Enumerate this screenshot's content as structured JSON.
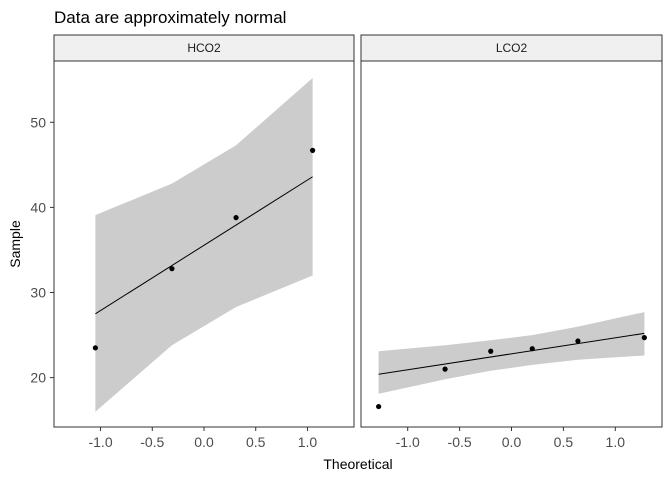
{
  "chart_data": {
    "type": "scatter",
    "title": "Data are approximately normal",
    "xlabel": "Theoretical",
    "ylabel": "Sample",
    "xlim": [
      -1.45,
      1.45
    ],
    "ylim": [
      14.2,
      57.2
    ],
    "x_ticks": [
      "-1.0",
      "-0.5",
      "0.0",
      "0.5",
      "1.0"
    ],
    "x_tick_values": [
      -1.0,
      -0.5,
      0.0,
      0.5,
      1.0
    ],
    "y_ticks": [
      "20",
      "30",
      "40",
      "50"
    ],
    "y_tick_values": [
      20,
      30,
      40,
      50
    ],
    "grid": false,
    "band_color": "#cccccc",
    "panels": [
      {
        "name": "HCO2",
        "points": [
          {
            "x": -1.05,
            "y": 23.5
          },
          {
            "x": -0.31,
            "y": 32.8
          },
          {
            "x": 0.31,
            "y": 38.8
          },
          {
            "x": 1.05,
            "y": 46.7
          }
        ],
        "line": [
          {
            "x": -1.05,
            "y": 27.5
          },
          {
            "x": 1.05,
            "y": 43.6
          }
        ],
        "band": [
          {
            "x": -1.05,
            "lower": 16.0,
            "upper": 39.1
          },
          {
            "x": -0.31,
            "lower": 23.8,
            "upper": 42.8
          },
          {
            "x": 0.31,
            "lower": 28.3,
            "upper": 47.3
          },
          {
            "x": 1.05,
            "lower": 32.0,
            "upper": 55.2
          }
        ]
      },
      {
        "name": "LCO2",
        "points": [
          {
            "x": -1.28,
            "y": 16.6
          },
          {
            "x": -0.64,
            "y": 21.0
          },
          {
            "x": -0.2,
            "y": 23.1
          },
          {
            "x": 0.2,
            "y": 23.4
          },
          {
            "x": 0.64,
            "y": 24.3
          },
          {
            "x": 1.28,
            "y": 24.7
          }
        ],
        "line": [
          {
            "x": -1.28,
            "y": 20.4
          },
          {
            "x": 1.28,
            "y": 25.2
          }
        ],
        "band": [
          {
            "x": -1.28,
            "lower": 18.1,
            "upper": 23.1
          },
          {
            "x": -0.64,
            "lower": 19.8,
            "upper": 23.8
          },
          {
            "x": -0.2,
            "lower": 20.8,
            "upper": 24.4
          },
          {
            "x": 0.2,
            "lower": 21.5,
            "upper": 25.0
          },
          {
            "x": 0.64,
            "lower": 22.1,
            "upper": 26.0
          },
          {
            "x": 1.28,
            "lower": 22.6,
            "upper": 27.7
          }
        ]
      }
    ]
  }
}
